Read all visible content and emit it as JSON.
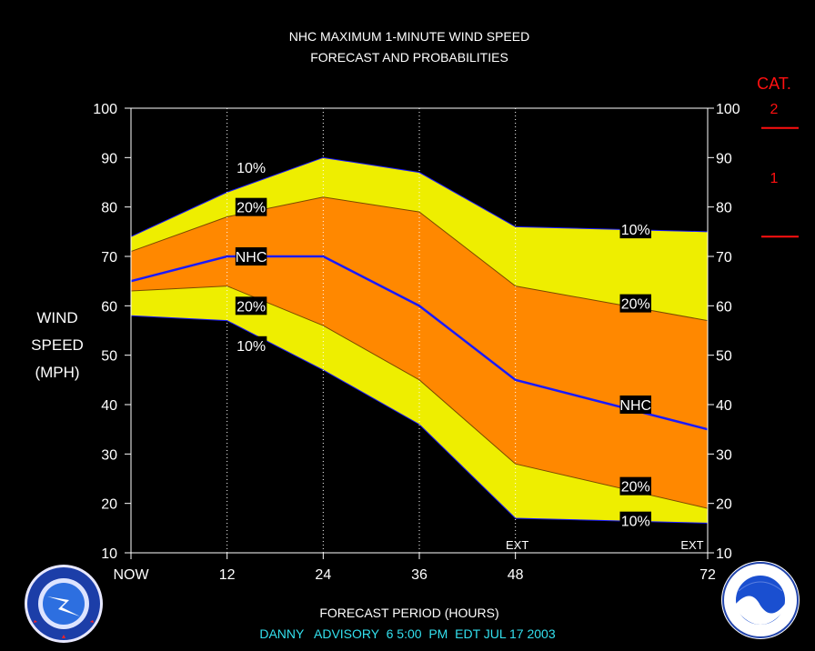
{
  "title_line1": "NHC MAXIMUM 1-MINUTE WIND SPEED",
  "title_line2": "FORECAST AND PROBABILITIES",
  "ylabel_lines": [
    "WIND",
    "SPEED",
    "(MPH)"
  ],
  "xlabel": "FORECAST PERIOD (HOURS)",
  "advisory": "DANNY   ADVISORY  6 5:00  PM  EDT JUL 17 2003",
  "cat_header": "CAT.",
  "cat_labels": [
    {
      "label": "2",
      "y": 100
    },
    {
      "label": "1",
      "y": 86
    }
  ],
  "cat_thresholds": [
    96,
    74
  ],
  "colors": {
    "outer_band": "#eeee00",
    "inner_band": "#ff8800",
    "nhc_line": "#1a1aff",
    "band_edge": "#1a1aff",
    "text": "#ffffff",
    "cat": "#ff1010",
    "advisory": "#33e0ee"
  },
  "chart_data": {
    "type": "area",
    "x": [
      0,
      12,
      24,
      36,
      48,
      72
    ],
    "xticks": [
      {
        "value": 0,
        "label": "NOW"
      },
      {
        "value": 12,
        "label": "12"
      },
      {
        "value": 24,
        "label": "24"
      },
      {
        "value": 36,
        "label": "36"
      },
      {
        "value": 48,
        "label": "48"
      },
      {
        "value": 72,
        "label": "72"
      }
    ],
    "xlim": [
      0,
      72
    ],
    "ylim": [
      10,
      100
    ],
    "yticks": [
      10,
      20,
      30,
      40,
      50,
      60,
      70,
      80,
      90,
      100
    ],
    "vertical_dotted_gridlines_at": [
      12,
      24,
      36,
      48
    ],
    "ext_marks": [
      {
        "x": 48,
        "label": "EXT"
      },
      {
        "x": 72,
        "label": "EXT"
      }
    ],
    "series": [
      {
        "name": "10%",
        "role": "upper_outer",
        "values": [
          74,
          83,
          90,
          87,
          76,
          75
        ]
      },
      {
        "name": "20%",
        "role": "upper_inner",
        "values": [
          71,
          78,
          82,
          79,
          64,
          57
        ]
      },
      {
        "name": "NHC",
        "role": "forecast",
        "values": [
          65,
          70,
          70,
          60,
          45,
          35
        ]
      },
      {
        "name": "20%",
        "role": "lower_inner",
        "values": [
          63,
          64,
          56,
          45,
          28,
          19
        ]
      },
      {
        "name": "10%",
        "role": "lower_outer",
        "values": [
          58,
          57,
          47,
          36,
          17,
          16
        ]
      }
    ],
    "annotations": [
      {
        "text": "10%",
        "x": 15,
        "y": 88
      },
      {
        "text": "20%",
        "x": 15,
        "y": 80
      },
      {
        "text": "NHC",
        "x": 15,
        "y": 70
      },
      {
        "text": "20%",
        "x": 15,
        "y": 60
      },
      {
        "text": "10%",
        "x": 15,
        "y": 52
      },
      {
        "text": "10%",
        "x": 63,
        "y": 75.5
      },
      {
        "text": "20%",
        "x": 63,
        "y": 60.5
      },
      {
        "text": "NHC",
        "x": 63,
        "y": 40
      },
      {
        "text": "20%",
        "x": 63,
        "y": 23.5
      },
      {
        "text": "10%",
        "x": 63,
        "y": 16.5
      }
    ]
  }
}
